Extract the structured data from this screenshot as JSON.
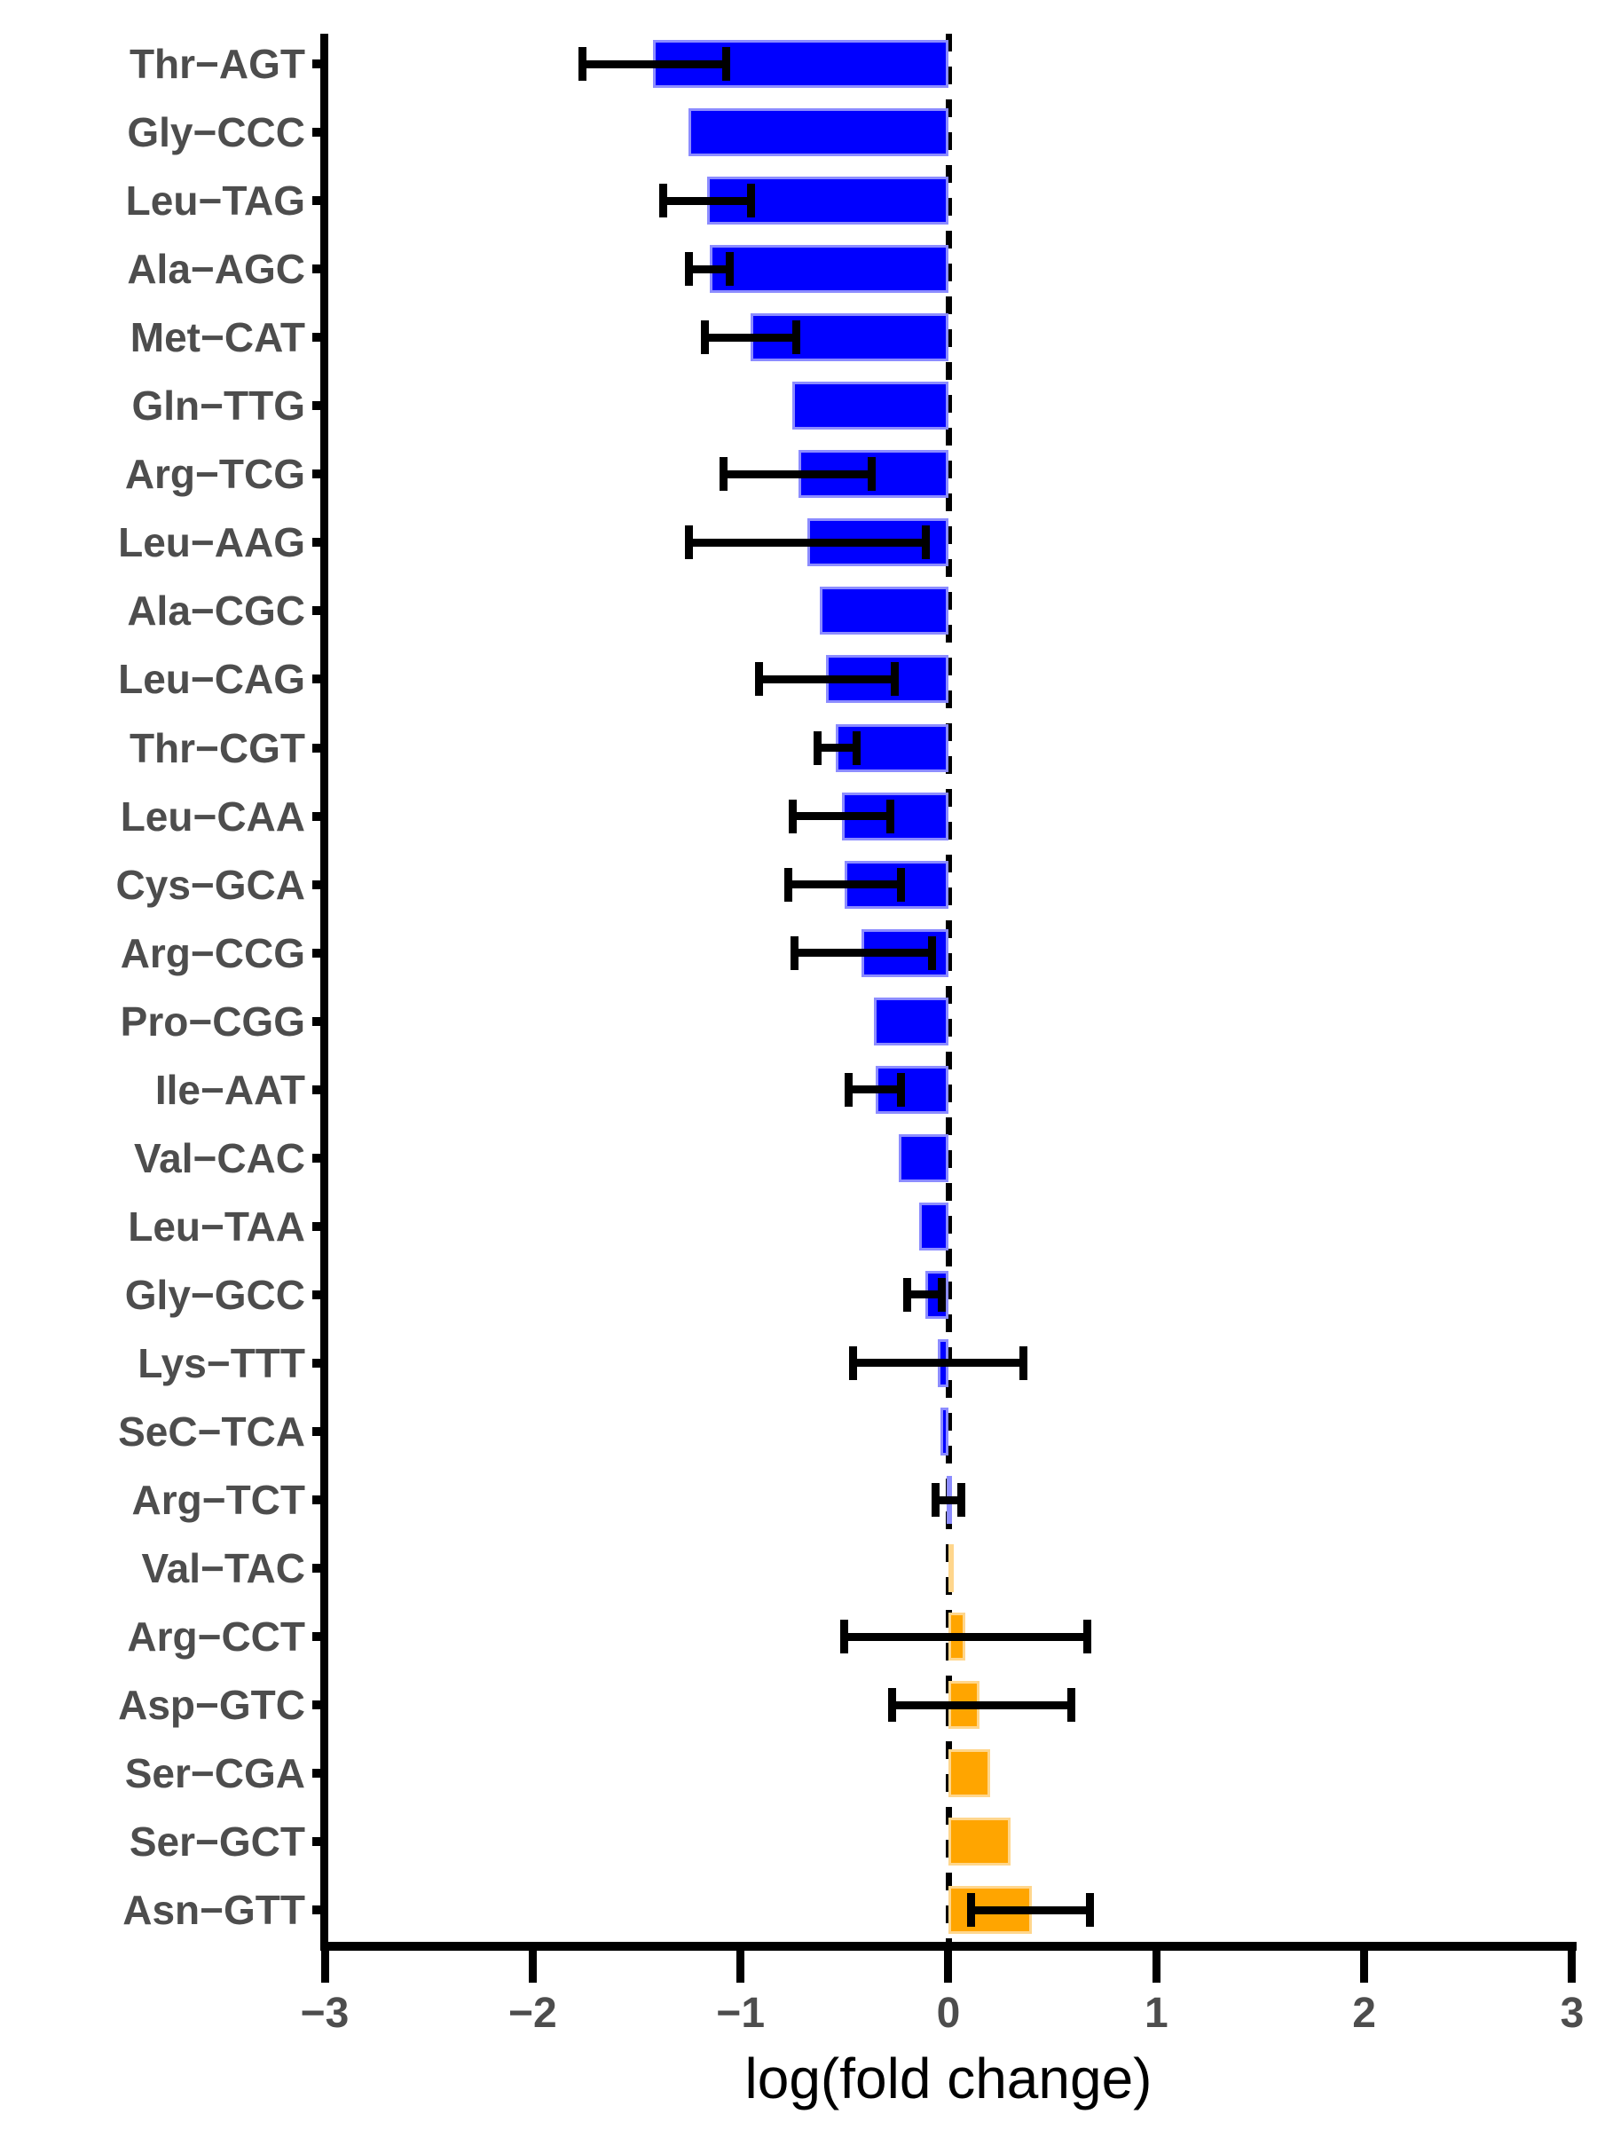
{
  "figure": {
    "background": "#ffffff"
  },
  "chart_data": {
    "type": "bar",
    "orientation": "horizontal",
    "title": "",
    "xlabel": "log(fold change)",
    "ylabel": "",
    "xlim": [
      -3,
      3
    ],
    "xticks": [
      -3,
      -2,
      -1,
      0,
      1,
      2,
      3
    ],
    "xtick_labels": [
      "−3",
      "−2",
      "−1",
      "0",
      "1",
      "2",
      "3"
    ],
    "zero_line": "dashed",
    "grid": false,
    "legend": false,
    "colors": {
      "negative_bar": "#0000FF",
      "positive_bar": "#FFA500",
      "error_bar": "#000000",
      "axis": "#000000",
      "tick_label": "#4d4d4d",
      "category_label": "#4d4d4d"
    },
    "categories": [
      "Thr−AGT",
      "Gly−CCC",
      "Leu−TAG",
      "Ala−AGC",
      "Met−CAT",
      "Gln−TTG",
      "Arg−TCG",
      "Leu−AAG",
      "Ala−CGC",
      "Leu−CAG",
      "Thr−CGT",
      "Leu−CAA",
      "Cys−GCA",
      "Arg−CCG",
      "Pro−CGG",
      "Ile−AAT",
      "Val−CAC",
      "Leu−TAA",
      "Gly−GCC",
      "Lys−TTT",
      "SeC−TCA",
      "Arg−TCT",
      "Val−TAC",
      "Arg−CCT",
      "Asp−GTC",
      "Ser−CGA",
      "Ser−GCT",
      "Asn−GTT"
    ],
    "values": [
      -1.42,
      -1.25,
      -1.16,
      -1.15,
      -0.95,
      -0.75,
      -0.72,
      -0.68,
      -0.62,
      -0.59,
      -0.54,
      -0.51,
      -0.5,
      -0.42,
      -0.36,
      -0.35,
      -0.24,
      -0.14,
      -0.11,
      -0.05,
      -0.04,
      -0.01,
      0.02,
      0.08,
      0.15,
      0.2,
      0.3,
      0.4
    ],
    "error_bars": [
      [
        -1.76,
        -1.07
      ],
      null,
      [
        -1.37,
        -0.95
      ],
      [
        -1.25,
        -1.05
      ],
      [
        -1.17,
        -0.73
      ],
      null,
      [
        -1.08,
        -0.37
      ],
      [
        -1.25,
        -0.11
      ],
      null,
      [
        -0.91,
        -0.26
      ],
      [
        -0.63,
        -0.44
      ],
      [
        -0.75,
        -0.28
      ],
      [
        -0.77,
        -0.23
      ],
      [
        -0.74,
        -0.08
      ],
      null,
      [
        -0.48,
        -0.23
      ],
      null,
      null,
      [
        -0.2,
        -0.03
      ],
      [
        -0.46,
        0.36
      ],
      null,
      [
        -0.06,
        0.06
      ],
      null,
      [
        -0.5,
        0.67
      ],
      [
        -0.27,
        0.59
      ],
      null,
      null,
      [
        0.11,
        0.68
      ]
    ]
  }
}
